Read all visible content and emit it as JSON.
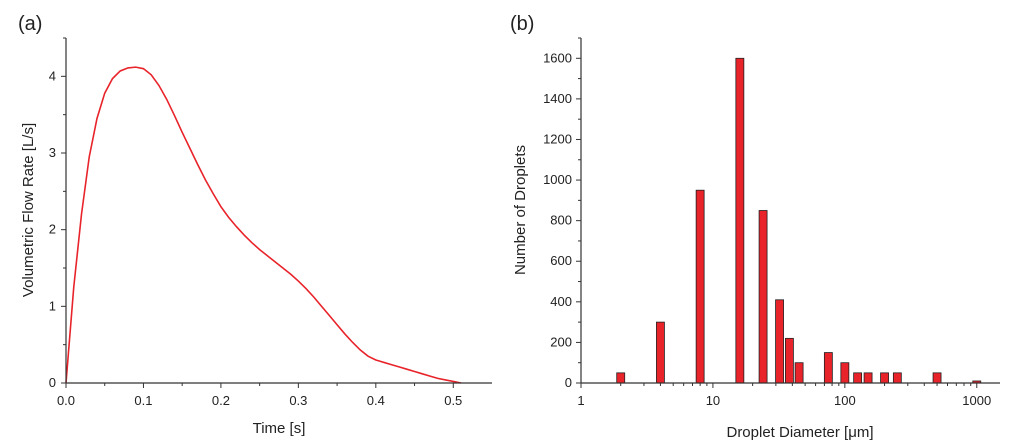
{
  "chart_data": [
    {
      "panel_label": "(a)",
      "type": "line",
      "xlabel": "Time [s]",
      "ylabel": "Volumetric Flow Rate [L/s]",
      "xlim": [
        0,
        0.55
      ],
      "ylim": [
        0,
        4.5
      ],
      "xticks": [
        0.0,
        0.1,
        0.2,
        0.3,
        0.4,
        0.5
      ],
      "xtick_labels": [
        "0.0",
        "0.1",
        "0.2",
        "0.3",
        "0.4",
        "0.5"
      ],
      "yticks": [
        0,
        1,
        2,
        3,
        4
      ],
      "ytick_labels": [
        "0",
        "1",
        "2",
        "3",
        "4"
      ],
      "line_color": "#e8232a",
      "series": [
        {
          "x": [
            0.0,
            0.01,
            0.02,
            0.03,
            0.04,
            0.05,
            0.06,
            0.07,
            0.08,
            0.09,
            0.1,
            0.11,
            0.12,
            0.13,
            0.14,
            0.15,
            0.16,
            0.17,
            0.18,
            0.19,
            0.2,
            0.21,
            0.22,
            0.23,
            0.24,
            0.25,
            0.26,
            0.27,
            0.28,
            0.29,
            0.3,
            0.31,
            0.32,
            0.33,
            0.34,
            0.35,
            0.36,
            0.37,
            0.38,
            0.39,
            0.4,
            0.41,
            0.42,
            0.43,
            0.44,
            0.45,
            0.46,
            0.47,
            0.48,
            0.49,
            0.5,
            0.51
          ],
          "y": [
            0.0,
            1.25,
            2.2,
            2.95,
            3.45,
            3.78,
            3.97,
            4.07,
            4.11,
            4.12,
            4.1,
            4.02,
            3.88,
            3.7,
            3.49,
            3.27,
            3.06,
            2.85,
            2.65,
            2.47,
            2.3,
            2.16,
            2.04,
            1.93,
            1.83,
            1.74,
            1.66,
            1.58,
            1.5,
            1.42,
            1.33,
            1.23,
            1.12,
            1.0,
            0.88,
            0.76,
            0.64,
            0.53,
            0.43,
            0.35,
            0.3,
            0.27,
            0.24,
            0.21,
            0.18,
            0.15,
            0.12,
            0.09,
            0.06,
            0.04,
            0.02,
            0.0
          ]
        }
      ]
    },
    {
      "panel_label": "(b)",
      "type": "bar",
      "xscale": "log",
      "xlabel": "Droplet Diameter [μm]",
      "ylabel": "Number of Droplets",
      "xlim": [
        1,
        1500
      ],
      "ylim": [
        0,
        1700
      ],
      "xticks": [
        1,
        10,
        100,
        1000
      ],
      "xtick_labels": [
        "1",
        "10",
        "100",
        "1000"
      ],
      "yticks": [
        0,
        200,
        400,
        600,
        800,
        1000,
        1200,
        1400,
        1600
      ],
      "ytick_labels": [
        "0",
        "200",
        "400",
        "600",
        "800",
        "1000",
        "1200",
        "1400",
        "1600"
      ],
      "bar_color": "#e8232a",
      "x": [
        2,
        4,
        8,
        16,
        24,
        32,
        38,
        45,
        75,
        100,
        125,
        150,
        200,
        250,
        500,
        1000
      ],
      "values": [
        50,
        300,
        950,
        1600,
        850,
        410,
        220,
        100,
        150,
        100,
        50,
        50,
        50,
        50,
        50,
        10
      ]
    }
  ]
}
